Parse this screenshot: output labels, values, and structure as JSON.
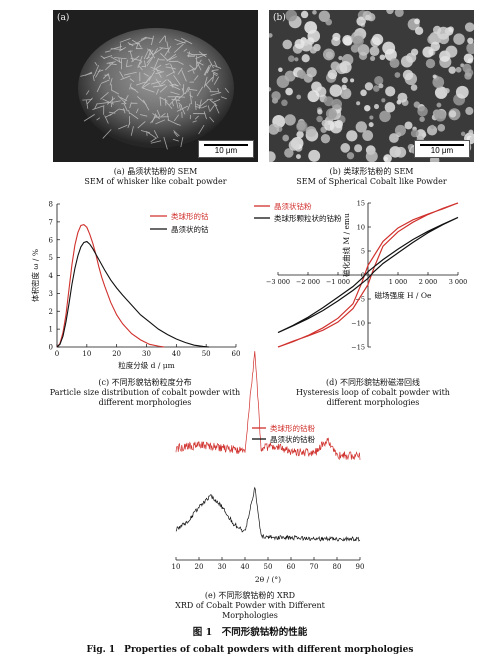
{
  "sem_a": {
    "letter": "(a)",
    "scale": "10 μm",
    "caption_zh": "(a) 晶须状钴粉的 SEM",
    "caption_en": "SEM of whisker like cobalt powder"
  },
  "sem_b": {
    "letter": "(b)",
    "scale": "10 μm",
    "caption_zh": "(b) 类球形钴粉的 SEM",
    "caption_en": "SEM of Spherical Cobalt like Powder"
  },
  "chart_c": {
    "caption_zh": "(c) 不同形貌钴粉粒度分布",
    "caption_en_1": "Particle size distribution of cobalt powder with",
    "caption_en_2": "different morphologies"
  },
  "chart_d": {
    "caption_zh": "(d) 不同形貌钴粉磁滞回线",
    "caption_en_1": "Hysteresis loop of cobalt powder with",
    "caption_en_2": "different morphologies"
  },
  "chart_e": {
    "caption_zh": "(e) 不同形貌钴粉的 XRD",
    "caption_en_1": "XRD of Cobalt Powder with Different",
    "caption_en_2": "Morphologies"
  },
  "figure": {
    "title_zh": "图 1　不同形貌钴粉的性能",
    "title_en": "Fig. 1　Properties of cobalt powders with different morphologies"
  },
  "chart_data": [
    {
      "type": "line",
      "xlabel": "粒度分级 d / μm",
      "ylabel": "体积密度 ω / %",
      "xlim": [
        0,
        60
      ],
      "ylim": [
        0,
        8
      ],
      "xticks": [
        "0",
        "10",
        "20",
        "30",
        "40",
        "50",
        "60"
      ],
      "yticks": [
        "0",
        "1",
        "2",
        "3",
        "4",
        "5",
        "6",
        "7",
        "8"
      ],
      "legend_position": "top-right",
      "colors": {
        "red": "#d0312d",
        "black": "#111111"
      },
      "series": [
        {
          "name": "类球形的钴",
          "color": "red",
          "x": [
            0,
            1,
            2,
            3,
            4,
            5,
            6,
            7,
            8,
            9,
            10,
            11,
            12,
            13,
            14,
            15,
            16,
            18,
            20,
            22,
            25,
            28,
            31,
            34,
            36
          ],
          "y": [
            0,
            0.2,
            0.8,
            1.8,
            3.2,
            4.6,
            5.7,
            6.4,
            6.8,
            6.85,
            6.7,
            6.3,
            5.8,
            5.2,
            4.5,
            3.9,
            3.4,
            2.5,
            1.8,
            1.3,
            0.75,
            0.4,
            0.15,
            0.05,
            0
          ]
        },
        {
          "name": "晶须状的钴",
          "color": "black",
          "x": [
            0,
            1,
            2,
            3,
            4,
            5,
            6,
            7,
            8,
            9,
            10,
            11,
            12,
            14,
            16,
            18,
            20,
            22,
            25,
            28,
            31,
            34,
            37,
            40,
            43,
            46,
            49,
            51
          ],
          "y": [
            0,
            0.15,
            0.6,
            1.4,
            2.4,
            3.5,
            4.4,
            5.1,
            5.6,
            5.85,
            5.9,
            5.75,
            5.5,
            4.9,
            4.3,
            3.75,
            3.3,
            2.9,
            2.35,
            1.8,
            1.4,
            1.0,
            0.7,
            0.45,
            0.25,
            0.1,
            0.03,
            0
          ]
        }
      ]
    },
    {
      "type": "line",
      "xlabel": "磁场强度 H / Oe",
      "ylabel": "磁化曲线 M / emu",
      "xlim": [
        -3000,
        3000
      ],
      "ylim": [
        -15,
        15
      ],
      "xticks": [
        "−3 000",
        "−2 000",
        "−1 000",
        "0",
        "1 000",
        "2 000",
        "3 000"
      ],
      "yticks": [
        "−15",
        "−10",
        "−5",
        "0",
        "5",
        "10",
        "15"
      ],
      "legend_position": "top-left",
      "series": [
        {
          "name": "晶须状钴粉",
          "color": "red",
          "x": [
            -3000,
            -2500,
            -2000,
            -1500,
            -1000,
            -500,
            -200,
            0,
            200,
            500,
            1000,
            1500,
            2000,
            2500,
            3000,
            2500,
            2000,
            1500,
            1000,
            500,
            200,
            0,
            -200,
            -500,
            -1000,
            -1500,
            -2000,
            -2500,
            -3000
          ],
          "y": [
            -15,
            -13.8,
            -12.7,
            -11.5,
            -9.8,
            -7,
            -4,
            -2,
            1.5,
            6,
            9,
            11,
            12.6,
            13.9,
            15,
            13.8,
            12.7,
            11.5,
            9.8,
            7,
            4,
            2,
            -1.5,
            -6,
            -9,
            -11,
            -12.6,
            -13.9,
            -15
          ]
        },
        {
          "name": "类球形颗粒状的钴粉",
          "color": "black",
          "x": [
            -3000,
            -2500,
            -2000,
            -1500,
            -1000,
            -500,
            -200,
            0,
            200,
            500,
            1000,
            1500,
            2000,
            2500,
            3000,
            2500,
            2000,
            1500,
            1000,
            500,
            200,
            0,
            -200,
            -500,
            -1000,
            -1500,
            -2000,
            -2500,
            -3000
          ],
          "y": [
            -12,
            -10.6,
            -9.1,
            -7.4,
            -5.4,
            -3.2,
            -1.7,
            -0.7,
            0.7,
            2.4,
            4.6,
            6.8,
            8.8,
            10.5,
            12,
            10.6,
            9.1,
            7.4,
            5.4,
            3.2,
            1.7,
            0.7,
            -0.7,
            -2.4,
            -4.6,
            -6.8,
            -8.8,
            -10.5,
            -12
          ]
        }
      ]
    },
    {
      "type": "line",
      "xlabel": "2θ / (°)",
      "xlim": [
        10,
        90
      ],
      "xticks": [
        "10",
        "20",
        "30",
        "40",
        "50",
        "60",
        "70",
        "80",
        "90"
      ],
      "legend_position": "top-right",
      "series": [
        {
          "name": "类球形的钴粉",
          "color": "red",
          "x": [
            10,
            20,
            30,
            40,
            44.3,
            47,
            51.5,
            60,
            70,
            75.9,
            80,
            90
          ],
          "y": [
            0.8,
            0.82,
            0.8,
            0.78,
            1.5,
            0.79,
            0.82,
            0.78,
            0.76,
            0.86,
            0.75,
            0.74
          ],
          "peaks": [
            44.3,
            51.5,
            75.9
          ]
        },
        {
          "name": "晶须状的钴粉",
          "color": "black",
          "x": [
            10,
            15,
            20,
            25,
            30,
            35,
            40,
            44.3,
            47,
            55,
            60,
            70,
            80,
            90
          ],
          "y": [
            0.22,
            0.27,
            0.38,
            0.46,
            0.38,
            0.26,
            0.2,
            0.52,
            0.17,
            0.16,
            0.16,
            0.15,
            0.15,
            0.15
          ],
          "peaks": [
            44.3
          ]
        }
      ]
    }
  ]
}
